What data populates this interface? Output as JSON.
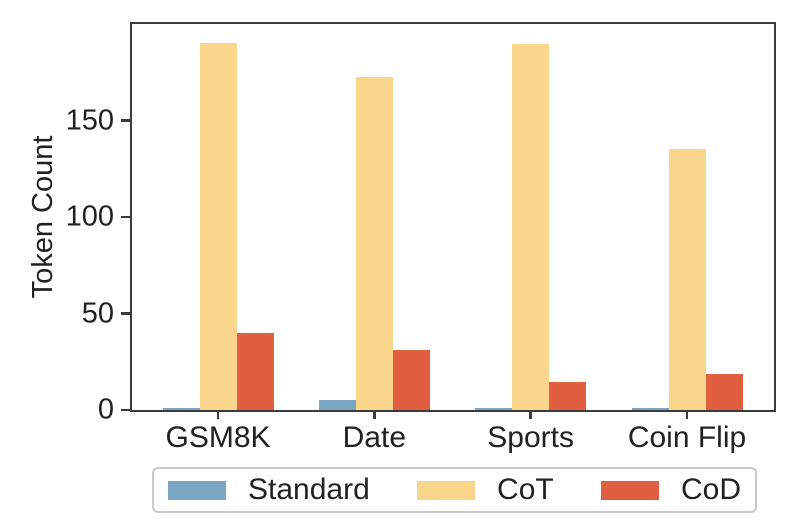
{
  "figure": {
    "background": "#ffffff"
  },
  "chart_data": {
    "type": "bar",
    "title": "",
    "ylabel": "Token Count",
    "xlabel": "",
    "categories": [
      "GSM8K",
      "Date",
      "Sports",
      "Coin Flip"
    ],
    "series": [
      {
        "name": "Standard",
        "color": "#7AA5C3",
        "values": [
          1.1,
          5.2,
          1.0,
          1.0
        ]
      },
      {
        "name": "CoT",
        "color": "#FAD58C",
        "values": [
          190.0,
          172.5,
          189.4,
          135.3
        ]
      },
      {
        "name": "CoD",
        "color": "#E25E41",
        "values": [
          39.8,
          31.3,
          14.3,
          18.9
        ]
      }
    ],
    "ylim": [
      0,
      200
    ],
    "yticks": [
      0,
      50,
      100,
      150
    ],
    "grid": false,
    "legend_position": "below-chart",
    "axis_color": "#3b3b3b",
    "text_color": "#212121",
    "legend_border_color": "#c9c9c9"
  }
}
